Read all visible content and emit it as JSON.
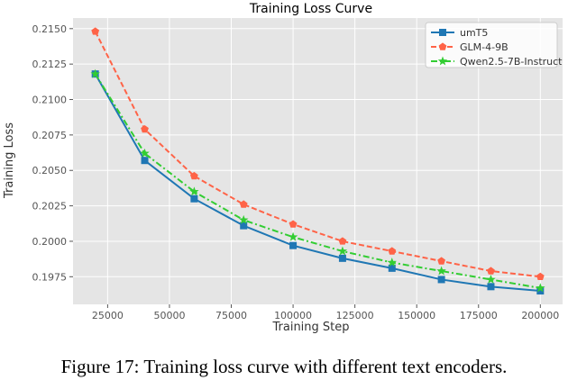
{
  "chart_data": {
    "type": "line",
    "title": "Training Loss Curve",
    "xlabel": "Training Step",
    "ylabel": "Training Loss",
    "xlim": [
      11000,
      209000
    ],
    "ylim": [
      0.19555,
      0.21575
    ],
    "grid": true,
    "legend_position": "top-right",
    "x_ticks": [
      25000,
      50000,
      75000,
      100000,
      125000,
      150000,
      175000,
      200000
    ],
    "x_tick_labels": [
      "25000",
      "50000",
      "75000",
      "100000",
      "125000",
      "150000",
      "175000",
      "200000"
    ],
    "y_ticks": [
      0.1975,
      0.2,
      0.2025,
      0.205,
      0.2075,
      0.21,
      0.2125,
      0.215
    ],
    "y_tick_labels": [
      "0.1975",
      "0.2000",
      "0.2025",
      "0.2050",
      "0.2075",
      "0.2100",
      "0.2125",
      "0.2150"
    ],
    "x": [
      20000,
      40000,
      60000,
      80000,
      100000,
      120000,
      140000,
      160000,
      180000,
      200000
    ],
    "series": [
      {
        "name": "umT5",
        "color": "#1f77b4",
        "marker": "square",
        "linestyle": "solid",
        "values": [
          0.2118,
          0.2057,
          0.203,
          0.2011,
          0.1997,
          0.1988,
          0.1981,
          0.1973,
          0.1968,
          0.1965
        ]
      },
      {
        "name": "GLM-4-9B",
        "color": "#ff6347",
        "marker": "pentagon",
        "linestyle": "dashed",
        "values": [
          0.2148,
          0.2079,
          0.2046,
          0.2026,
          0.2012,
          0.2,
          0.1993,
          0.1986,
          0.1979,
          0.1975
        ]
      },
      {
        "name": "Qwen2.5-7B-Instruct",
        "color": "#32cd32",
        "marker": "star",
        "linestyle": "dashdot",
        "values": [
          0.2118,
          0.2062,
          0.2035,
          0.2015,
          0.2003,
          0.1993,
          0.1985,
          0.1979,
          0.1973,
          0.1967
        ]
      }
    ]
  },
  "caption": "Figure 17: Training loss curve with different text encoders."
}
